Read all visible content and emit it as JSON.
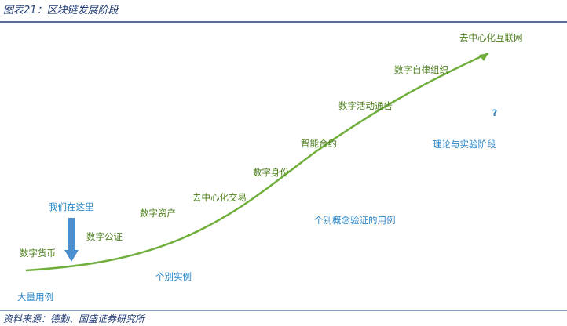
{
  "header": {
    "title": "图表21：区块链发展阶段"
  },
  "stages": [
    "数字货币",
    "数字公证",
    "数字资产",
    "去中心化交易",
    "数字身份",
    "智能合约",
    "数字活动通告",
    "数字自律组织",
    "去中心化互联网"
  ],
  "phases": [
    "大量用例",
    "个别实例",
    "个别概念验证的用例",
    "理论与实验阶段"
  ],
  "marker": "我们在这里",
  "question": "?",
  "source": "资料来源：德勤、国盛证券研究所"
}
